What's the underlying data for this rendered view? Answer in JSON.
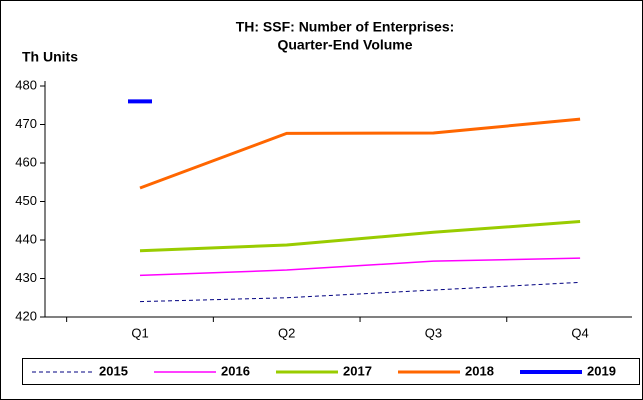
{
  "chart_data": {
    "type": "line",
    "title": [
      "TH: SSF: Number of Enterprises:",
      "Quarter-End Volume"
    ],
    "y_label": "Th Units",
    "categories": [
      "Q1",
      "Q2",
      "Q3",
      "Q4"
    ],
    "series": [
      {
        "name": "2015",
        "color": "#000080",
        "dash": true,
        "width": 1,
        "values": [
          424,
          425,
          427,
          429
        ]
      },
      {
        "name": "2016",
        "color": "#ff00ff",
        "dash": false,
        "width": 1.5,
        "values": [
          430.8,
          432.2,
          434.5,
          435.3
        ]
      },
      {
        "name": "2017",
        "color": "#99cc00",
        "dash": false,
        "width": 3,
        "values": [
          437.2,
          438.7,
          442,
          444.8
        ]
      },
      {
        "name": "2018",
        "color": "#ff6600",
        "dash": false,
        "width": 3,
        "values": [
          453.5,
          467.7,
          467.8,
          471.4
        ]
      },
      {
        "name": "2019",
        "color": "#0000ff",
        "dash": false,
        "width": 4,
        "values": [
          476,
          null,
          null,
          null
        ]
      }
    ],
    "ylim": [
      420,
      480
    ],
    "yticks": [
      420,
      430,
      440,
      450,
      460,
      470,
      480
    ],
    "legend": "bottom"
  }
}
